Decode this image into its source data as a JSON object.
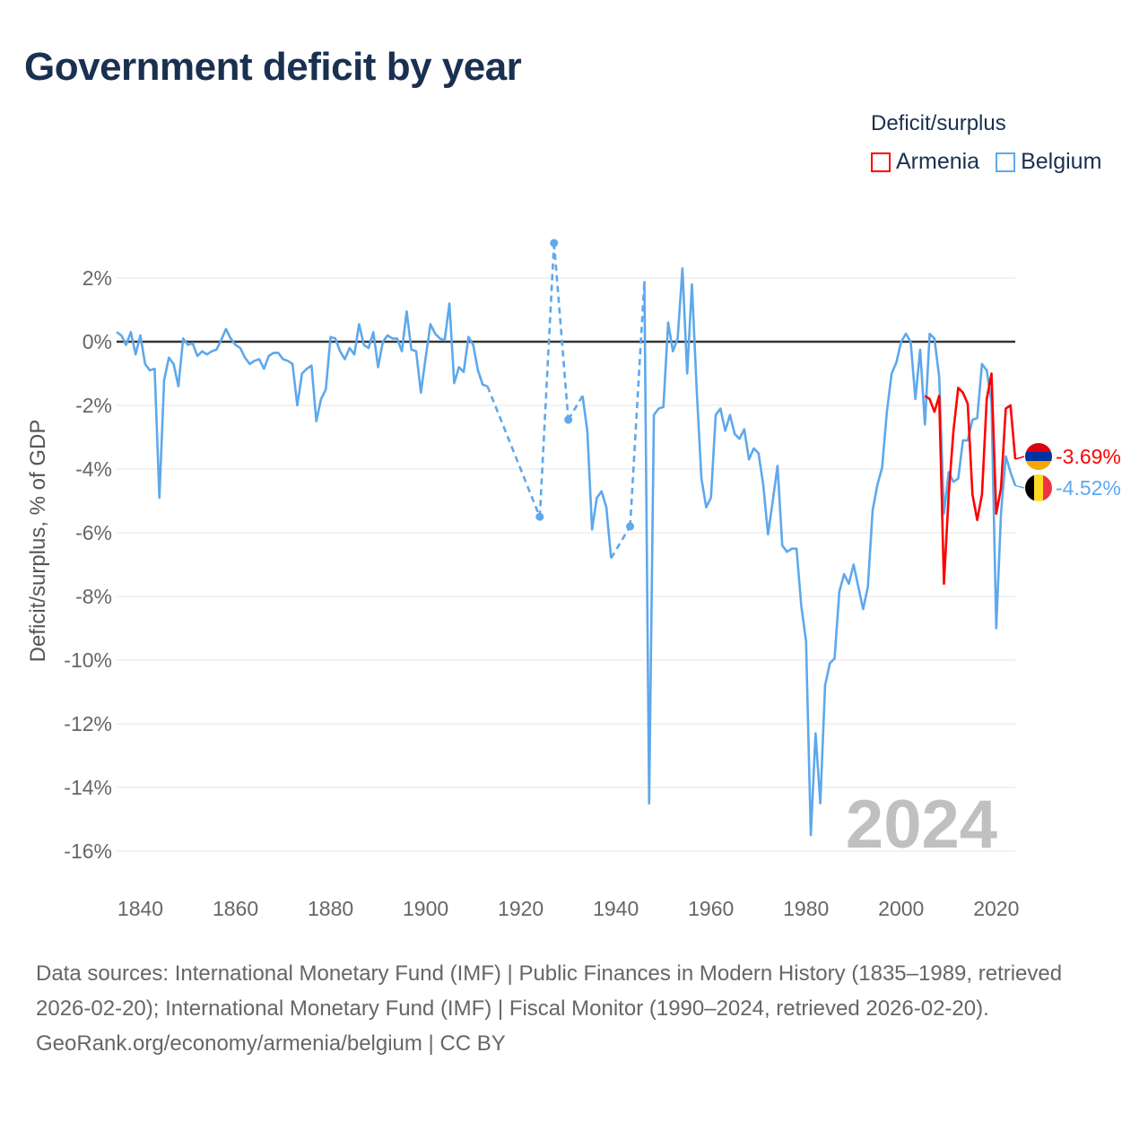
{
  "title": "Government deficit by year",
  "legend": {
    "title": "Deficit/surplus",
    "items": [
      {
        "label": "Armenia",
        "color": "#ff0000"
      },
      {
        "label": "Belgium",
        "color": "#5ea8ec"
      }
    ]
  },
  "year_watermark": "2024",
  "footer": {
    "sources": "Data sources: International Monetary Fund (IMF) | Public Finances in Modern History (1835–1989, retrieved 2026-02-20); International Monetary Fund (IMF) | Fiscal Monitor (1990–2024, retrieved 2026-02-20).",
    "credit": "GeoRank.org/economy/armenia/belgium | CC BY"
  },
  "chart_data": {
    "type": "line",
    "title": "Government deficit by year",
    "xlabel": "",
    "ylabel": "Deficit/surplus, % of GDP",
    "xlim": [
      1835,
      2024
    ],
    "ylim": [
      -17,
      3.2
    ],
    "x_ticks": [
      1840,
      1860,
      1880,
      1900,
      1920,
      1940,
      1960,
      1980,
      2000,
      2020
    ],
    "y_ticks": [
      2,
      0,
      -2,
      -4,
      -6,
      -8,
      -10,
      -12,
      -14,
      -16
    ],
    "y_tick_labels": [
      "2%",
      "0%",
      "-2%",
      "-4%",
      "-6%",
      "-8%",
      "-10%",
      "-12%",
      "-14%",
      "-16%"
    ],
    "x_tick_labels": [
      "1840",
      "1860",
      "1880",
      "1900",
      "1920",
      "1940",
      "1960",
      "1980",
      "2000",
      "2020"
    ],
    "grid": true,
    "legend_position": "top-right",
    "series": [
      {
        "name": "Armenia",
        "color": "#ff0000",
        "end_label": "-3.69%",
        "flag": "armenia",
        "points": [
          [
            2005,
            -1.7
          ],
          [
            2006,
            -1.8
          ],
          [
            2007,
            -2.2
          ],
          [
            2008,
            -1.7
          ],
          [
            2009,
            -7.6
          ],
          [
            2010,
            -4.8
          ],
          [
            2011,
            -2.8
          ],
          [
            2012,
            -1.45
          ],
          [
            2013,
            -1.6
          ],
          [
            2014,
            -1.95
          ],
          [
            2015,
            -4.8
          ],
          [
            2016,
            -5.6
          ],
          [
            2017,
            -4.8
          ],
          [
            2018,
            -1.8
          ],
          [
            2019,
            -1.0
          ],
          [
            2020,
            -5.4
          ],
          [
            2021,
            -4.6
          ],
          [
            2022,
            -2.1
          ],
          [
            2023,
            -2.0
          ],
          [
            2024,
            -3.69
          ]
        ]
      },
      {
        "name": "Belgium",
        "color": "#5ea8ec",
        "end_label": "-4.52%",
        "flag": "belgium",
        "points": [
          [
            1835,
            0.3
          ],
          [
            1836,
            0.2
          ],
          [
            1837,
            -0.1
          ],
          [
            1838,
            0.3
          ],
          [
            1839,
            -0.4
          ],
          [
            1840,
            0.2
          ],
          [
            1841,
            -0.7
          ],
          [
            1842,
            -0.9
          ],
          [
            1843,
            -0.85
          ],
          [
            1844,
            -4.9
          ],
          [
            1845,
            -1.2
          ],
          [
            1846,
            -0.5
          ],
          [
            1847,
            -0.7
          ],
          [
            1848,
            -1.4
          ],
          [
            1849,
            0.1
          ],
          [
            1850,
            -0.1
          ],
          [
            1851,
            -0.05
          ],
          [
            1852,
            -0.45
          ],
          [
            1853,
            -0.3
          ],
          [
            1854,
            -0.4
          ],
          [
            1855,
            -0.3
          ],
          [
            1856,
            -0.25
          ],
          [
            1857,
            0.05
          ],
          [
            1858,
            0.4
          ],
          [
            1859,
            0.1
          ],
          [
            1860,
            -0.1
          ],
          [
            1861,
            -0.2
          ],
          [
            1862,
            -0.5
          ],
          [
            1863,
            -0.7
          ],
          [
            1864,
            -0.6
          ],
          [
            1865,
            -0.55
          ],
          [
            1866,
            -0.85
          ],
          [
            1867,
            -0.45
          ],
          [
            1868,
            -0.35
          ],
          [
            1869,
            -0.35
          ],
          [
            1870,
            -0.55
          ],
          [
            1871,
            -0.6
          ],
          [
            1872,
            -0.7
          ],
          [
            1873,
            -2.0
          ],
          [
            1874,
            -1.0
          ],
          [
            1875,
            -0.85
          ],
          [
            1876,
            -0.75
          ],
          [
            1877,
            -2.5
          ],
          [
            1878,
            -1.8
          ],
          [
            1879,
            -1.5
          ],
          [
            1880,
            0.15
          ],
          [
            1881,
            0.1
          ],
          [
            1882,
            -0.3
          ],
          [
            1883,
            -0.55
          ],
          [
            1884,
            -0.2
          ],
          [
            1885,
            -0.4
          ],
          [
            1886,
            0.55
          ],
          [
            1887,
            -0.1
          ],
          [
            1888,
            -0.2
          ],
          [
            1889,
            0.3
          ],
          [
            1890,
            -0.8
          ],
          [
            1891,
            0.0
          ],
          [
            1892,
            0.2
          ],
          [
            1893,
            0.1
          ],
          [
            1894,
            0.1
          ],
          [
            1895,
            -0.3
          ],
          [
            1896,
            0.95
          ],
          [
            1897,
            -0.25
          ],
          [
            1898,
            -0.3
          ],
          [
            1899,
            -1.6
          ],
          [
            1900,
            -0.5
          ],
          [
            1901,
            0.55
          ],
          [
            1902,
            0.25
          ],
          [
            1903,
            0.1
          ],
          [
            1904,
            0.05
          ],
          [
            1905,
            1.2
          ],
          [
            1906,
            -1.3
          ],
          [
            1907,
            -0.8
          ],
          [
            1908,
            -0.95
          ],
          [
            1909,
            0.15
          ],
          [
            1910,
            -0.1
          ],
          [
            1911,
            -0.9
          ],
          [
            1912,
            -1.35
          ],
          [
            1913,
            -1.4
          ],
          [
            1924,
            -5.5
          ],
          [
            1927,
            3.1
          ],
          [
            1930,
            -2.45
          ],
          [
            1933,
            -1.7
          ],
          [
            1934,
            -2.8
          ],
          [
            1935,
            -5.9
          ],
          [
            1936,
            -4.9
          ],
          [
            1937,
            -4.7
          ],
          [
            1938,
            -5.2
          ],
          [
            1939,
            -6.8
          ],
          [
            1943,
            -5.8
          ],
          [
            1946,
            1.9
          ],
          [
            1947,
            -14.5
          ],
          [
            1948,
            -2.3
          ],
          [
            1949,
            -2.1
          ],
          [
            1950,
            -2.05
          ],
          [
            1951,
            0.6
          ],
          [
            1952,
            -0.3
          ],
          [
            1953,
            0.1
          ],
          [
            1954,
            2.3
          ],
          [
            1955,
            -1.0
          ],
          [
            1956,
            1.8
          ],
          [
            1957,
            -1.5
          ],
          [
            1958,
            -4.3
          ],
          [
            1959,
            -5.2
          ],
          [
            1960,
            -4.9
          ],
          [
            1961,
            -2.3
          ],
          [
            1962,
            -2.1
          ],
          [
            1963,
            -2.8
          ],
          [
            1964,
            -2.3
          ],
          [
            1965,
            -2.9
          ],
          [
            1966,
            -3.05
          ],
          [
            1967,
            -2.75
          ],
          [
            1968,
            -3.7
          ],
          [
            1969,
            -3.35
          ],
          [
            1970,
            -3.5
          ],
          [
            1971,
            -4.5
          ],
          [
            1972,
            -6.05
          ],
          [
            1973,
            -5.0
          ],
          [
            1974,
            -3.9
          ],
          [
            1975,
            -6.4
          ],
          [
            1976,
            -6.6
          ],
          [
            1977,
            -6.5
          ],
          [
            1978,
            -6.5
          ],
          [
            1979,
            -8.3
          ],
          [
            1980,
            -9.4
          ],
          [
            1981,
            -15.5
          ],
          [
            1982,
            -12.3
          ],
          [
            1983,
            -14.5
          ],
          [
            1984,
            -10.8
          ],
          [
            1985,
            -10.1
          ],
          [
            1986,
            -9.95
          ],
          [
            1987,
            -7.85
          ],
          [
            1988,
            -7.3
          ],
          [
            1989,
            -7.6
          ],
          [
            1990,
            -7.0
          ],
          [
            1991,
            -7.7
          ],
          [
            1992,
            -8.4
          ],
          [
            1993,
            -7.7
          ],
          [
            1994,
            -5.3
          ],
          [
            1995,
            -4.5
          ],
          [
            1996,
            -3.95
          ],
          [
            1997,
            -2.2
          ],
          [
            1998,
            -1.0
          ],
          [
            1999,
            -0.65
          ],
          [
            2000,
            0.0
          ],
          [
            2001,
            0.25
          ],
          [
            2002,
            0.0
          ],
          [
            2003,
            -1.8
          ],
          [
            2004,
            -0.25
          ],
          [
            2005,
            -2.6
          ],
          [
            2006,
            0.25
          ],
          [
            2007,
            0.1
          ],
          [
            2008,
            -1.1
          ],
          [
            2009,
            -5.4
          ],
          [
            2010,
            -4.1
          ],
          [
            2011,
            -4.4
          ],
          [
            2012,
            -4.3
          ],
          [
            2013,
            -3.1
          ],
          [
            2014,
            -3.1
          ],
          [
            2015,
            -2.45
          ],
          [
            2016,
            -2.4
          ],
          [
            2017,
            -0.7
          ],
          [
            2018,
            -0.9
          ],
          [
            2019,
            -1.9
          ],
          [
            2020,
            -9.0
          ],
          [
            2021,
            -5.4
          ],
          [
            2022,
            -3.6
          ],
          [
            2023,
            -4.1
          ],
          [
            2024,
            -4.52
          ]
        ]
      }
    ]
  }
}
